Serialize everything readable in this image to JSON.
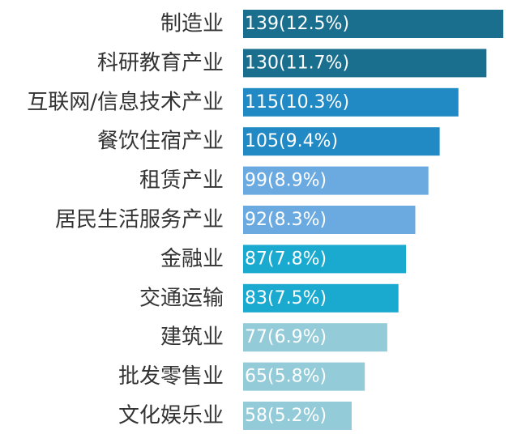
{
  "chart_data": {
    "type": "bar",
    "orientation": "horizontal",
    "categories": [
      "制造业",
      "科研教育产业",
      "互联网/信息技术产业",
      "餐饮住宿产业",
      "租赁产业",
      "居民生活服务产业",
      "金融业",
      "交通运输",
      "建筑业",
      "批发零售业",
      "文化娱乐业"
    ],
    "values": [
      139,
      130,
      115,
      105,
      99,
      92,
      87,
      83,
      77,
      65,
      58
    ],
    "data_labels": [
      "139(12.5%)",
      "130(11.7%)",
      "115(10.3%)",
      "105(9.4%)",
      "99(8.9%)",
      "92(8.3%)",
      "87(7.8%)",
      "83(7.5%)",
      "77(6.9%)",
      "65(5.8%)",
      "58(5.2%)"
    ],
    "colors": [
      "#1a6f8f",
      "#1a6f8f",
      "#2189c4",
      "#2189c4",
      "#6aaae0",
      "#6aaae0",
      "#1aa9cf",
      "#1aa9cf",
      "#93cbd8",
      "#93cbd8",
      "#93cbd8"
    ],
    "title": "",
    "xlabel": "",
    "ylabel": "",
    "grid": false,
    "legend": "none"
  }
}
